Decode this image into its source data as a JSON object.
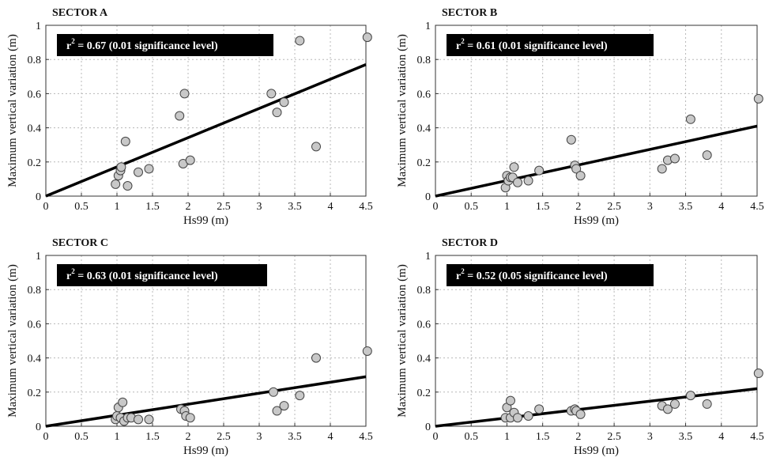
{
  "figure": {
    "panels": [
      {
        "title": "SECTOR A",
        "annotation": {
          "r": "r",
          "sup": "2",
          "text": " =  0.67 (0.01 significance level)"
        },
        "xlabel": "Hs99 (m)",
        "ylabel": "Maximum vertical variation (m)"
      },
      {
        "title": "SECTOR B",
        "annotation": {
          "r": "r",
          "sup": "2",
          "text": " =  0.61 (0.01 significance level)"
        },
        "xlabel": "Hs99 (m)",
        "ylabel": "Maximum vertical variation (m)"
      },
      {
        "title": "SECTOR C",
        "annotation": {
          "r": "r",
          "sup": "2",
          "text": " =  0.63 (0.01 significance level)"
        },
        "xlabel": "Hs99 (m)",
        "ylabel": "Maximum vertical variation (m)"
      },
      {
        "title": "SECTOR D",
        "annotation": {
          "r": "r",
          "sup": "2",
          "text": " =  0.52 (0.05 significance level)"
        },
        "xlabel": "Hs99 (m)",
        "ylabel": "Maximum vertical variation (m)"
      }
    ]
  },
  "colors": {
    "point_fill": "#c8c8c8",
    "point_stroke": "#444444",
    "line": "#000000",
    "annotation_bg": "#000000",
    "annotation_text": "#ffffff",
    "grid": "#b8b8b8"
  },
  "chart_data": [
    {
      "type": "scatter",
      "title": "SECTOR A",
      "xlabel": "Hs99 (m)",
      "ylabel": "Maximum vertical variation (m)",
      "xlim": [
        0,
        4.5
      ],
      "ylim": [
        0,
        1
      ],
      "xticks": [
        "0",
        "0.5",
        "1",
        "1.5",
        "2",
        "2.5",
        "3",
        "3.5",
        "4",
        "4.5"
      ],
      "yticks": [
        "0",
        "0.2",
        "0.4",
        "0.6",
        "0.8",
        "1"
      ],
      "grid": true,
      "points": [
        [
          0.98,
          0.07
        ],
        [
          1.02,
          0.12
        ],
        [
          1.05,
          0.15
        ],
        [
          1.06,
          0.17
        ],
        [
          1.12,
          0.32
        ],
        [
          1.15,
          0.06
        ],
        [
          1.3,
          0.14
        ],
        [
          1.45,
          0.16
        ],
        [
          1.88,
          0.47
        ],
        [
          1.93,
          0.19
        ],
        [
          1.95,
          0.6
        ],
        [
          2.03,
          0.21
        ],
        [
          3.17,
          0.6
        ],
        [
          3.25,
          0.49
        ],
        [
          3.35,
          0.55
        ],
        [
          3.57,
          0.91
        ],
        [
          3.8,
          0.29
        ],
        [
          4.52,
          0.93
        ]
      ],
      "fit_line": [
        [
          0,
          0
        ],
        [
          4.5,
          0.77
        ]
      ]
    },
    {
      "type": "scatter",
      "title": "SECTOR B",
      "xlabel": "Hs99 (m)",
      "ylabel": "Maximum vertical variation (m)",
      "xlim": [
        0,
        4.5
      ],
      "ylim": [
        0,
        1
      ],
      "xticks": [
        "0",
        "0.5",
        "1",
        "1.5",
        "2",
        "2.5",
        "3",
        "3.5",
        "4",
        "4.5"
      ],
      "yticks": [
        "0",
        "0.2",
        "0.4",
        "0.6",
        "0.8",
        "1"
      ],
      "grid": true,
      "points": [
        [
          0.98,
          0.05
        ],
        [
          1.0,
          0.12
        ],
        [
          1.02,
          0.09
        ],
        [
          1.05,
          0.11
        ],
        [
          1.08,
          0.11
        ],
        [
          1.1,
          0.17
        ],
        [
          1.15,
          0.08
        ],
        [
          1.3,
          0.09
        ],
        [
          1.45,
          0.15
        ],
        [
          1.9,
          0.33
        ],
        [
          1.95,
          0.18
        ],
        [
          1.97,
          0.16
        ],
        [
          2.03,
          0.12
        ],
        [
          3.17,
          0.16
        ],
        [
          3.25,
          0.21
        ],
        [
          3.35,
          0.22
        ],
        [
          3.57,
          0.45
        ],
        [
          3.8,
          0.24
        ],
        [
          4.52,
          0.57
        ]
      ],
      "fit_line": [
        [
          0,
          0
        ],
        [
          4.5,
          0.41
        ]
      ]
    },
    {
      "type": "scatter",
      "title": "SECTOR C",
      "xlabel": "Hs99 (m)",
      "ylabel": "Maximum vertical variation (m)",
      "xlim": [
        0,
        4.5
      ],
      "ylim": [
        0,
        1
      ],
      "xticks": [
        "0",
        "0.5",
        "1",
        "1.5",
        "2",
        "2.5",
        "3",
        "3.5",
        "4",
        "4.5"
      ],
      "yticks": [
        "0",
        "0.2",
        "0.4",
        "0.6",
        "0.8",
        "1"
      ],
      "grid": true,
      "points": [
        [
          0.98,
          0.04
        ],
        [
          1.0,
          0.06
        ],
        [
          1.02,
          0.11
        ],
        [
          1.05,
          0.05
        ],
        [
          1.08,
          0.14
        ],
        [
          1.1,
          0.03
        ],
        [
          1.15,
          0.05
        ],
        [
          1.2,
          0.05
        ],
        [
          1.3,
          0.04
        ],
        [
          1.45,
          0.04
        ],
        [
          1.9,
          0.1
        ],
        [
          1.95,
          0.09
        ],
        [
          1.97,
          0.06
        ],
        [
          2.03,
          0.05
        ],
        [
          3.2,
          0.2
        ],
        [
          3.25,
          0.09
        ],
        [
          3.35,
          0.12
        ],
        [
          3.57,
          0.18
        ],
        [
          3.8,
          0.4
        ],
        [
          4.52,
          0.44
        ]
      ],
      "fit_line": [
        [
          0,
          0
        ],
        [
          4.5,
          0.29
        ]
      ]
    },
    {
      "type": "scatter",
      "title": "SECTOR D",
      "xlabel": "Hs99 (m)",
      "ylabel": "Maximum vertical variation (m)",
      "xlim": [
        0,
        4.5
      ],
      "ylim": [
        0,
        1
      ],
      "xticks": [
        "0",
        "0.5",
        "1",
        "1.5",
        "2",
        "2.5",
        "3",
        "3.5",
        "4",
        "4.5"
      ],
      "yticks": [
        "0",
        "0.2",
        "0.4",
        "0.6",
        "0.8",
        "1"
      ],
      "grid": true,
      "points": [
        [
          0.98,
          0.05
        ],
        [
          1.0,
          0.11
        ],
        [
          1.05,
          0.15
        ],
        [
          1.05,
          0.05
        ],
        [
          1.1,
          0.08
        ],
        [
          1.15,
          0.05
        ],
        [
          1.3,
          0.06
        ],
        [
          1.45,
          0.1
        ],
        [
          1.9,
          0.09
        ],
        [
          1.95,
          0.1
        ],
        [
          1.97,
          0.09
        ],
        [
          2.03,
          0.07
        ],
        [
          3.17,
          0.12
        ],
        [
          3.25,
          0.1
        ],
        [
          3.35,
          0.13
        ],
        [
          3.57,
          0.18
        ],
        [
          3.8,
          0.13
        ],
        [
          4.52,
          0.31
        ]
      ],
      "fit_line": [
        [
          0,
          0
        ],
        [
          4.5,
          0.22
        ]
      ]
    }
  ]
}
